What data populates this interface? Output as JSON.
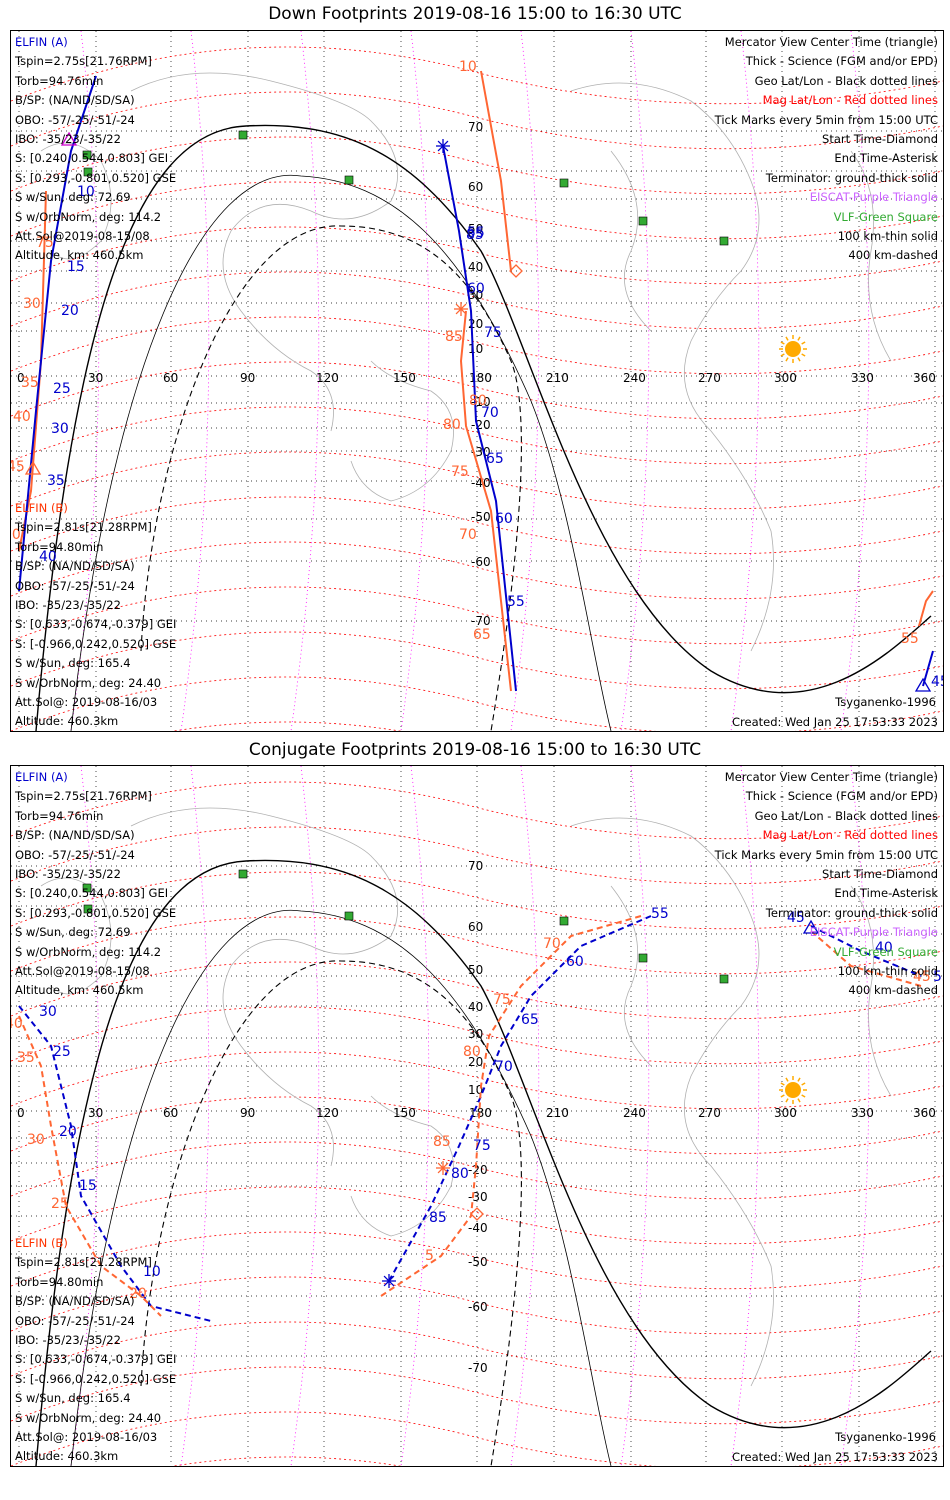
{
  "panels": [
    {
      "title": "Down Footprints 2019-08-16 15:00 to 16:30 UTC",
      "elfin_a": {
        "name": "ELFIN (A)",
        "lines": [
          "Tspin=2.75s[21.76RPM]",
          "Torb=94.76min",
          "B/SP: (NA/ND/SD/SA)",
          "OBO: -57/-25/-51/-24",
          "IBO: -35/23/-35/22",
          "S: [0.240,0.544,0.803] GEI",
          "S: [0.293,-0.801,0.520] GSE",
          "S w/Sun, deg: 72.69",
          "S w/OrbNorm, deg: 114.2",
          "Att.Sol@2019-08-15/08",
          "Altitude, km: 460.5km"
        ]
      },
      "elfin_b": {
        "name": "ELFIN (B)",
        "lines": [
          "Tspin=2.81s[21.28RPM]",
          "Torb=94.80min",
          "B/SP: (NA/ND/SD/SA)",
          "OBO: -57/-25/-51/-24",
          "IBO: -35/23/-35/22",
          "S: [0.633,-0.674,-0.379] GEI",
          "S: [-0.966,0.242,0.520] GSE",
          "S w/Sun, deg: 165.4",
          "S w/OrbNorm, deg: 24.40",
          "Att.Sol@: 2019-08-16/03",
          "Altitude: 460.3km"
        ]
      },
      "model": "Tsyganenko-1996",
      "created": "Created: Wed Jan 25 17:53:33 2023"
    },
    {
      "title": "Conjugate Footprints 2019-08-16 15:00 to 16:30 UTC",
      "elfin_a": {
        "name": "ELFIN (A)",
        "lines": [
          "Tspin=2.75s[21.76RPM]",
          "Torb=94.76min",
          "B/SP: (NA/ND/SD/SA)",
          "OBO: -57/-25/-51/-24",
          "IBO: -35/23/-35/22",
          "S: [0.240,0.544,0.803] GEI",
          "S: [0.293,-0.801,0.520] GSE",
          "S w/Sun, deg: 72.69",
          "S w/OrbNorm, deg: 114.2",
          "Att.Sol@2019-08-15/08",
          "Altitude, km: 460.5km"
        ]
      },
      "elfin_b": {
        "name": "ELFIN (B)",
        "lines": [
          "Tspin=2.81s[21.28RPM]",
          "Torb=94.80min",
          "B/SP: (NA/ND/SD/SA)",
          "OBO: -57/-25/-51/-24",
          "IBO: -35/23/-35/22",
          "S: [0.633,-0.674,-0.379] GEI",
          "S: [-0.966,0.242,0.520] GSE",
          "S w/Sun, deg: 165.4",
          "S w/OrbNorm, deg: 24.40",
          "Att.Sol@: 2019-08-16/03",
          "Altitude: 460.3km"
        ]
      },
      "model": "Tsyganenko-1996",
      "created": "Created: Wed Jan 25 17:53:33 2023"
    }
  ],
  "legend": [
    {
      "text": "Mercator View Center Time (triangle)",
      "color": "#000000"
    },
    {
      "text": "Thick - Science (FGM and/or EPD)",
      "color": "#000000"
    },
    {
      "text": "Geo Lat/Lon - Black dotted lines",
      "color": "#000000"
    },
    {
      "text": "Mag Lat/Lon - Red dotted lines",
      "color": "#ff0000"
    },
    {
      "text": "Tick Marks every 5min from 15:00 UTC",
      "color": "#000000"
    },
    {
      "text": "Start Time-Diamond",
      "color": "#000000"
    },
    {
      "text": "End Time-Asterisk",
      "color": "#000000"
    },
    {
      "text": "Terminator: ground-thick solid",
      "color": "#000000"
    },
    {
      "text": "EISCAT-Purple Triangle",
      "color": "#cc66ff"
    },
    {
      "text": "VLF-Green Square",
      "color": "#33aa33"
    },
    {
      "text": "100 km-thin solid",
      "color": "#000000"
    },
    {
      "text": "400 km-dashed",
      "color": "#000000"
    }
  ],
  "colors": {
    "elfin_a": "#0000cc",
    "elfin_b": "#ff6633",
    "geo_grid": "#000000",
    "mag_grid": "#ff0000",
    "meridian": "#ff00ff",
    "sun": "#ffaa00",
    "vlf": "#33aa33"
  },
  "axes": {
    "lon_ticks": [
      "0",
      "30",
      "60",
      "90",
      "120",
      "150",
      "180",
      "210",
      "240",
      "270",
      "300",
      "330",
      "360"
    ],
    "lat_ticks_top": [
      "70",
      "60",
      "50",
      "40",
      "30",
      "20",
      "10",
      "-10",
      "-20",
      "-30",
      "-40",
      "-50",
      "-60",
      "-70"
    ],
    "lat_ticks_bottom": [
      "70",
      "60",
      "50",
      "40",
      "30",
      "20",
      "10",
      "-20",
      "-30",
      "-40",
      "-50",
      "-60",
      "-70"
    ]
  },
  "track_labels": {
    "down_a": [
      "10",
      "15",
      "20",
      "25",
      "30",
      "35",
      "40",
      "55",
      "60",
      "65",
      "70",
      "75",
      "80",
      "85",
      "45"
    ],
    "down_b": [
      "10",
      "30",
      "35",
      "40",
      "45",
      "50",
      "55",
      "65",
      "70",
      "75",
      "80",
      "85"
    ],
    "conj_a": [
      "10",
      "15",
      "20",
      "25",
      "30",
      "40",
      "45",
      "55",
      "60",
      "65",
      "70",
      "80",
      "85"
    ],
    "conj_b": [
      "5",
      "20",
      "25",
      "30",
      "35",
      "40",
      "45",
      "70",
      "75",
      "80",
      "85"
    ]
  }
}
